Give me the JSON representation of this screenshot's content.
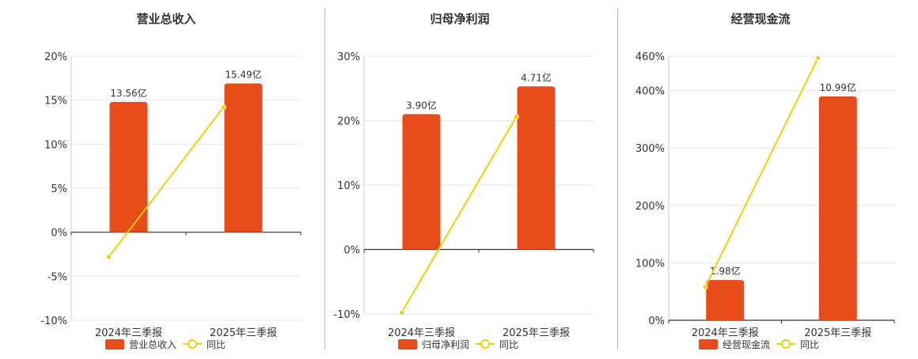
{
  "colors": {
    "bar": "#e84c1a",
    "line": "#f0cf0a",
    "grid": "#e6e6e6",
    "axis": "#333333",
    "text": "#333333"
  },
  "chart_data": [
    {
      "type": "bar",
      "title": "营业总收入",
      "categories": [
        "2024年三季报",
        "2025年三季报"
      ],
      "series": [
        {
          "name": "营业总收入",
          "kind": "bar",
          "values": [
            14.8,
            16.9
          ],
          "labels": [
            "13.56亿",
            "15.49亿"
          ]
        },
        {
          "name": "同比",
          "kind": "line",
          "values": [
            -2.8,
            14.2
          ]
        }
      ],
      "yticks": [
        20,
        15,
        10,
        5,
        0,
        -5,
        -10
      ],
      "ytick_labels": [
        "20%",
        "15%",
        "10%",
        "5%",
        "0%",
        "-5%",
        "-10%"
      ],
      "ylim": [
        -10,
        20
      ],
      "grid": true,
      "legend": [
        "营业总收入",
        "同比"
      ],
      "legend_position": "bottom"
    },
    {
      "type": "bar",
      "title": "归母净利润",
      "categories": [
        "2024年三季报",
        "2025年三季报"
      ],
      "series": [
        {
          "name": "归母净利润",
          "kind": "bar",
          "values": [
            21,
            25.3
          ],
          "labels": [
            "3.90亿",
            "4.71亿"
          ]
        },
        {
          "name": "同比",
          "kind": "line",
          "values": [
            -9.8,
            20.6
          ]
        }
      ],
      "yticks": [
        30,
        20,
        10,
        0,
        -10
      ],
      "ytick_labels": [
        "30%",
        "20%",
        "10%",
        "0%",
        "-10%"
      ],
      "ylim": [
        -10,
        30
      ],
      "grid": true,
      "legend": [
        "归母净利润",
        "同比"
      ],
      "legend_position": "bottom"
    },
    {
      "type": "bar",
      "title": "经营现金流",
      "categories": [
        "2024年三季报",
        "2025年三季报"
      ],
      "series": [
        {
          "name": "经营现金流",
          "kind": "bar",
          "values": [
            70,
            390
          ],
          "labels": [
            "1.98亿",
            "10.99亿"
          ]
        },
        {
          "name": "同比",
          "kind": "line",
          "values": [
            58,
            457
          ]
        }
      ],
      "yticks": [
        460,
        400,
        300,
        200,
        100,
        0
      ],
      "ytick_labels": [
        "460%",
        "400%",
        "300%",
        "200%",
        "100%",
        "0%"
      ],
      "ylim": [
        0,
        460
      ],
      "grid": true,
      "legend": [
        "经营现金流",
        "同比"
      ],
      "legend_position": "bottom"
    }
  ]
}
